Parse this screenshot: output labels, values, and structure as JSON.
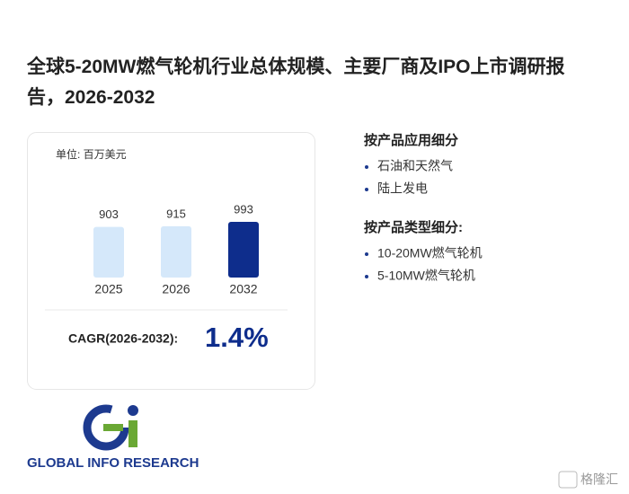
{
  "title": "全球5-20MW燃气轮机行业总体规模、主要厂商及IPO上市调研报告，2026-2032",
  "chart_data": {
    "type": "bar",
    "unit": "单位: 百万美元",
    "categories": [
      "2025",
      "2026",
      "2032"
    ],
    "values": [
      903,
      915,
      993
    ],
    "colors": [
      "#d5e8fa",
      "#d5e8fa",
      "#0e2d8c"
    ]
  },
  "cagr": {
    "label": "CAGR(2026-2032):",
    "value": "1.4%"
  },
  "segments": [
    {
      "title": "按产品应用细分",
      "items": [
        "石油和天然气",
        "陆上发电"
      ]
    },
    {
      "title": "按产品类型细分:",
      "items": [
        "10-20MW燃气轮机",
        "5-10MW燃气轮机"
      ]
    }
  ],
  "logo": {
    "text": "GLOBAL INFO RESEARCH"
  },
  "watermark": "格隆汇"
}
